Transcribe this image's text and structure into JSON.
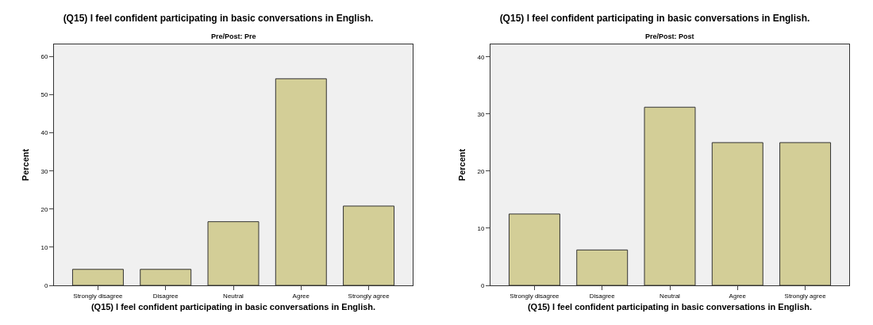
{
  "chart_data": [
    {
      "type": "bar",
      "title": "(Q15) I feel confident participating in basic conversations in English.",
      "subtitle": "Pre/Post: Pre",
      "xlabel": "(Q15) I feel confident participating in basic conversations in English.",
      "ylabel": "Percent",
      "categories": [
        "Strongly disagree",
        "Disagree",
        "Neutral",
        "Agree",
        "Strongly agree"
      ],
      "values": [
        4.2,
        4.2,
        16.7,
        54.2,
        20.8
      ],
      "color": "#d3ce97",
      "ylim": [
        0,
        63.2
      ],
      "yticks": [
        0,
        10,
        20,
        30,
        40,
        50,
        60
      ],
      "grid": false
    },
    {
      "type": "bar",
      "title": "(Q15) I feel confident participating in basic conversations in English.",
      "subtitle": "Pre/Post: Post",
      "xlabel": "(Q15) I feel confident participating in basic conversations in English.",
      "ylabel": "Percent",
      "categories": [
        "Strongly disagree",
        "Disagree",
        "Neutral",
        "Agree",
        "Strongly agree"
      ],
      "values": [
        12.5,
        6.2,
        31.2,
        25,
        25
      ],
      "color": "#d3ce97",
      "ylim": [
        0,
        42.2
      ],
      "yticks": [
        0,
        10,
        20,
        30,
        40
      ],
      "grid": false
    }
  ]
}
